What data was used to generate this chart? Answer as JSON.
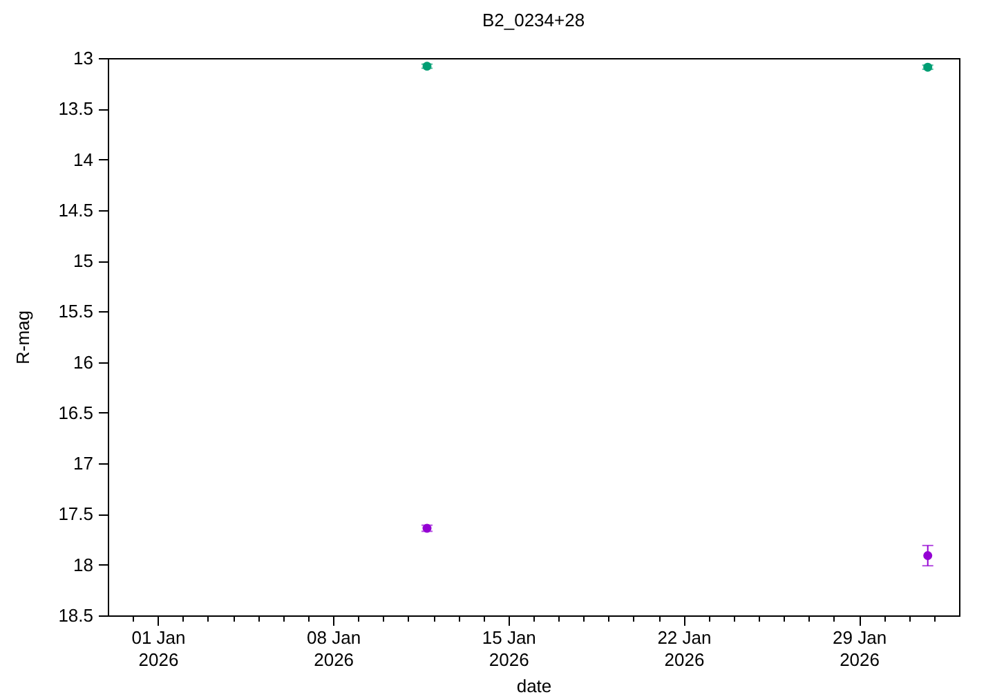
{
  "chart_data": {
    "type": "scatter",
    "title": "B2_0234+28",
    "xlabel": "date",
    "ylabel": "R-mag",
    "xlim": [
      "2025-12-30",
      "2026-02-02"
    ],
    "xticks": [
      {
        "value": "2025-12-31",
        "label": null
      },
      {
        "value": "2026-01-01",
        "label": "01 Jan\n2026"
      },
      {
        "value": "2026-01-02",
        "label": null
      },
      {
        "value": "2026-01-03",
        "label": null
      },
      {
        "value": "2026-01-04",
        "label": null
      },
      {
        "value": "2026-01-05",
        "label": null
      },
      {
        "value": "2026-01-06",
        "label": null
      },
      {
        "value": "2026-01-07",
        "label": null
      },
      {
        "value": "2026-01-08",
        "label": "08 Jan\n2026"
      },
      {
        "value": "2026-01-09",
        "label": null
      },
      {
        "value": "2026-01-10",
        "label": null
      },
      {
        "value": "2026-01-11",
        "label": null
      },
      {
        "value": "2026-01-12",
        "label": null
      },
      {
        "value": "2026-01-13",
        "label": null
      },
      {
        "value": "2026-01-14",
        "label": null
      },
      {
        "value": "2026-01-15",
        "label": "15 Jan\n2026"
      },
      {
        "value": "2026-01-16",
        "label": null
      },
      {
        "value": "2026-01-17",
        "label": null
      },
      {
        "value": "2026-01-18",
        "label": null
      },
      {
        "value": "2026-01-19",
        "label": null
      },
      {
        "value": "2026-01-20",
        "label": null
      },
      {
        "value": "2026-01-21",
        "label": null
      },
      {
        "value": "2026-01-22",
        "label": "22 Jan\n2026"
      },
      {
        "value": "2026-01-23",
        "label": null
      },
      {
        "value": "2026-01-24",
        "label": null
      },
      {
        "value": "2026-01-25",
        "label": null
      },
      {
        "value": "2026-01-26",
        "label": null
      },
      {
        "value": "2026-01-27",
        "label": null
      },
      {
        "value": "2026-01-28",
        "label": null
      },
      {
        "value": "2026-01-29",
        "label": "29 Jan\n2026"
      },
      {
        "value": "2026-01-30",
        "label": null
      },
      {
        "value": "2026-01-31",
        "label": null
      },
      {
        "value": "2026-02-01",
        "label": null
      }
    ],
    "ylim": [
      18.5,
      13
    ],
    "yticks": [
      13,
      13.5,
      14,
      14.5,
      15,
      15.5,
      16,
      16.5,
      17,
      17.5,
      18,
      18.5
    ],
    "marker": "circle",
    "series": [
      {
        "color": "#9400d3",
        "x": [
          "2026-01-11T18:00",
          "2026-01-31T18:00"
        ],
        "values": [
          17.64,
          17.91
        ],
        "errors": [
          0.03,
          0.1
        ]
      },
      {
        "color": "#009e73",
        "x": [
          "2026-01-11T18:00",
          "2026-01-31T18:00"
        ],
        "values": [
          13.08,
          13.09
        ],
        "errors": [
          0.02,
          0.02
        ]
      }
    ]
  }
}
